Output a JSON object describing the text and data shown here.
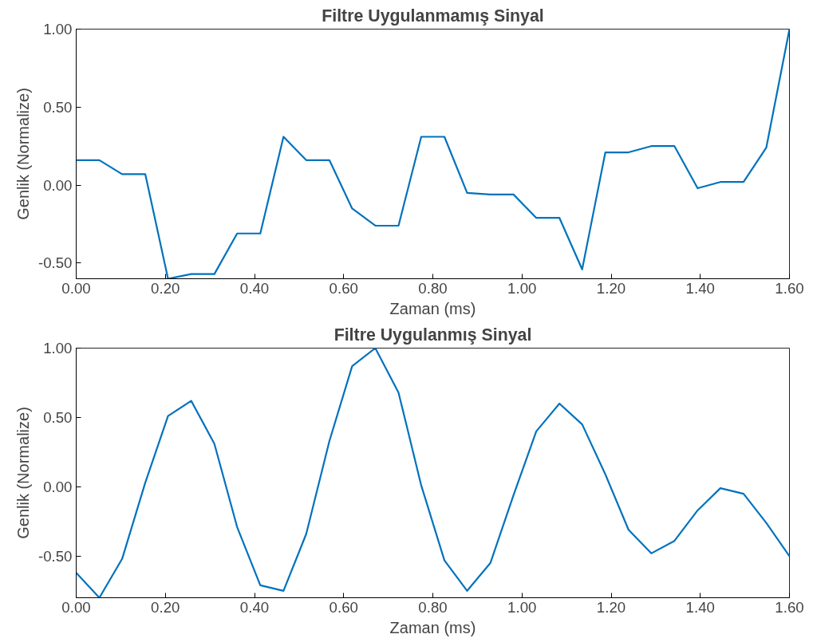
{
  "chart_data": [
    {
      "type": "line",
      "title": "Filtre Uygulanmamış Sinyal",
      "xlabel": "Zaman (ms)",
      "ylabel": "Genlik (Normalize)",
      "x": [
        0,
        0.052,
        0.103,
        0.155,
        0.206,
        0.258,
        0.31,
        0.361,
        0.413,
        0.465,
        0.516,
        0.568,
        0.619,
        0.671,
        0.723,
        0.774,
        0.826,
        0.877,
        0.929,
        0.981,
        1.032,
        1.084,
        1.135,
        1.187,
        1.239,
        1.29,
        1.342,
        1.394,
        1.445,
        1.497,
        1.548,
        1.6
      ],
      "series": [
        {
          "color": "#0072bd",
          "values": [
            0.16,
            0.16,
            0.07,
            0.07,
            -0.6,
            -0.57,
            -0.57,
            -0.31,
            -0.31,
            0.31,
            0.16,
            0.16,
            -0.15,
            -0.26,
            -0.26,
            0.31,
            0.31,
            -0.05,
            -0.06,
            -0.06,
            -0.21,
            -0.21,
            -0.54,
            0.21,
            0.21,
            0.25,
            0.25,
            -0.02,
            0.02,
            0.02,
            0.24,
            1.0
          ]
        }
      ],
      "xlim": [
        0,
        1.6
      ],
      "ylim": [
        -0.6,
        1.0
      ],
      "xticks": [
        {
          "value": 0,
          "label": "0.00"
        },
        {
          "value": 0.2,
          "label": "0.20"
        },
        {
          "value": 0.4,
          "label": "0.40"
        },
        {
          "value": 0.6,
          "label": "0.60"
        },
        {
          "value": 0.8,
          "label": "0.80"
        },
        {
          "value": 1.0,
          "label": "1.00"
        },
        {
          "value": 1.2,
          "label": "1.20"
        },
        {
          "value": 1.4,
          "label": "1.40"
        },
        {
          "value": 1.6,
          "label": "1.60"
        }
      ],
      "yticks": [
        {
          "value": -0.5,
          "label": "-0.50"
        },
        {
          "value": 0,
          "label": "0.00"
        },
        {
          "value": 0.5,
          "label": "0.50"
        },
        {
          "value": 1.0,
          "label": "1.00"
        }
      ],
      "grid": false
    },
    {
      "type": "line",
      "title": "Filtre Uygulanmış Sinyal",
      "xlabel": "Zaman (ms)",
      "ylabel": "Genlik (Normalize)",
      "x": [
        0,
        0.052,
        0.103,
        0.155,
        0.206,
        0.258,
        0.31,
        0.361,
        0.413,
        0.465,
        0.516,
        0.568,
        0.619,
        0.671,
        0.723,
        0.774,
        0.826,
        0.877,
        0.929,
        0.981,
        1.032,
        1.084,
        1.135,
        1.187,
        1.239,
        1.29,
        1.342,
        1.394,
        1.445,
        1.497,
        1.548,
        1.6
      ],
      "series": [
        {
          "color": "#0072bd",
          "values": [
            -0.62,
            -0.8,
            -0.52,
            0.03,
            0.51,
            0.62,
            0.31,
            -0.29,
            -0.71,
            -0.75,
            -0.34,
            0.33,
            0.87,
            1.0,
            0.68,
            0.01,
            -0.53,
            -0.75,
            -0.55,
            -0.06,
            0.4,
            0.6,
            0.45,
            0.09,
            -0.31,
            -0.48,
            -0.39,
            -0.17,
            -0.01,
            -0.05,
            -0.26,
            -0.5
          ]
        }
      ],
      "xlim": [
        0,
        1.6
      ],
      "ylim": [
        -0.8,
        1.0
      ],
      "xticks": [
        {
          "value": 0,
          "label": "0.00"
        },
        {
          "value": 0.2,
          "label": "0.20"
        },
        {
          "value": 0.4,
          "label": "0.40"
        },
        {
          "value": 0.6,
          "label": "0.60"
        },
        {
          "value": 0.8,
          "label": "0.80"
        },
        {
          "value": 1.0,
          "label": "1.00"
        },
        {
          "value": 1.2,
          "label": "1.20"
        },
        {
          "value": 1.4,
          "label": "1.40"
        },
        {
          "value": 1.6,
          "label": "1.60"
        }
      ],
      "yticks": [
        {
          "value": -0.5,
          "label": "-0.50"
        },
        {
          "value": 0,
          "label": "0.00"
        },
        {
          "value": 0.5,
          "label": "0.50"
        },
        {
          "value": 1.0,
          "label": "1.00"
        }
      ],
      "grid": false
    }
  ]
}
